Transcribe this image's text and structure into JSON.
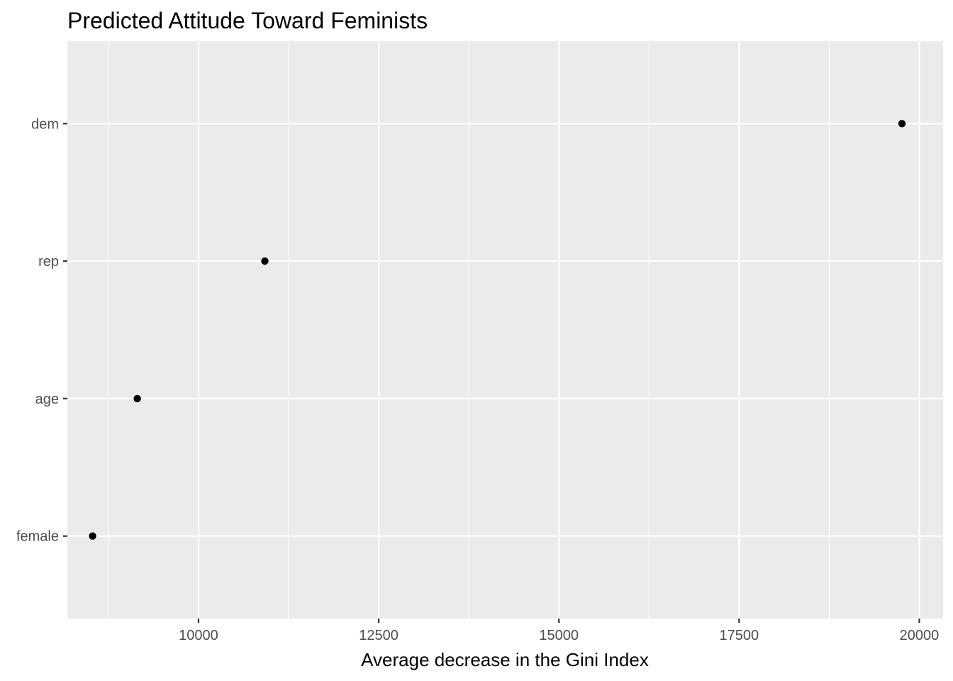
{
  "chart_data": {
    "type": "scatter",
    "title": "Predicted Attitude Toward Feminists",
    "xlabel": "Average decrease in the Gini Index",
    "ylabel": "",
    "categories": [
      "female",
      "age",
      "rep",
      "dem"
    ],
    "values": [
      8530,
      9150,
      10920,
      19760
    ],
    "xlim": [
      8180,
      20330
    ],
    "x_ticks": [
      10000,
      12500,
      15000,
      17500,
      20000
    ],
    "x_tick_labels": [
      "10000",
      "12500",
      "15000",
      "17500",
      "20000"
    ],
    "grid": true,
    "legend": "none",
    "colors": {
      "panel": "#ebebeb",
      "grid": "#ffffff",
      "point": "#000000",
      "tick_text": "#4d4d4d"
    }
  }
}
